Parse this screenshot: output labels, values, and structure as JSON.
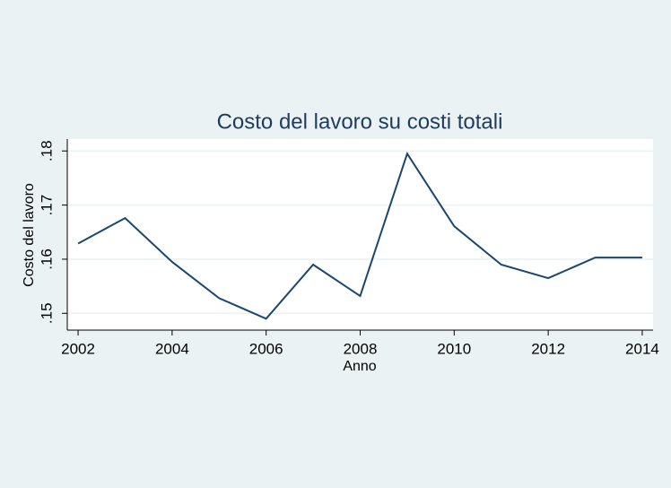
{
  "chart_data": {
    "type": "line",
    "title": "Costo del lavoro su costi totali",
    "x_label": "Anno",
    "y_label": "Costo del lavoro",
    "x": [
      2002,
      2003,
      2004,
      2005,
      2006,
      2007,
      2008,
      2009,
      2010,
      2011,
      2012,
      2013,
      2014
    ],
    "series": [
      {
        "name": "Costo del lavoro",
        "color": "#1a476f",
        "values": [
          0.1629,
          0.1676,
          0.1595,
          0.1528,
          0.149,
          0.159,
          0.1532,
          0.1795,
          0.1661,
          0.159,
          0.1565,
          0.1603,
          0.1603
        ]
      }
    ],
    "xlim": [
      2001.77,
      2014.23
    ],
    "ylim": [
      0.1469,
      0.1822
    ],
    "xticks": [
      2002,
      2004,
      2006,
      2008,
      2010,
      2012,
      2014
    ],
    "yticks": [
      {
        "value": 0.15,
        "label": ".15"
      },
      {
        "value": 0.16,
        "label": ".16"
      },
      {
        "value": 0.17,
        "label": ".17"
      },
      {
        "value": 0.18,
        "label": ".18"
      }
    ],
    "grid": true
  }
}
